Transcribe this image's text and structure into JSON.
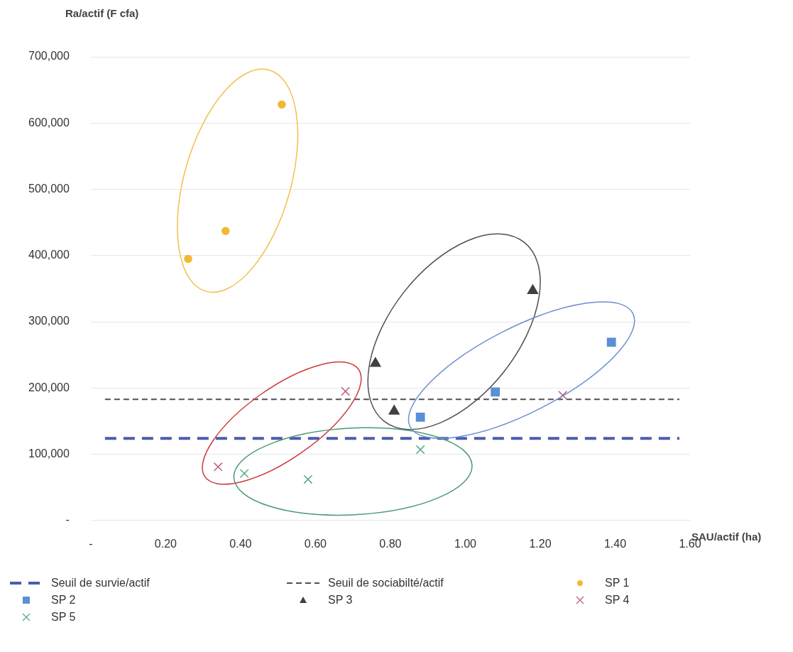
{
  "chart_data": {
    "type": "scatter",
    "xlabel": "SAU/actif (ha)",
    "ylabel": "Ra/actif (F cfa)",
    "xlim": [
      0,
      1.6
    ],
    "xticks": [
      {
        "value": 0,
        "label": "-"
      },
      {
        "value": 0.2,
        "label": "0.20"
      },
      {
        "value": 0.4,
        "label": "0.40"
      },
      {
        "value": 0.6,
        "label": "0.60"
      },
      {
        "value": 0.8,
        "label": "0.80"
      },
      {
        "value": 1,
        "label": "1.00"
      },
      {
        "value": 1.2,
        "label": "1.20"
      },
      {
        "value": 1.4,
        "label": "1.40"
      },
      {
        "value": 1.6,
        "label": "1.60"
      }
    ],
    "ylim": [
      0,
      700000
    ],
    "yticks": [
      {
        "value": 0,
        "label": "-"
      },
      {
        "value": 100000,
        "label": "100,000"
      },
      {
        "value": 200000,
        "label": "200,000"
      },
      {
        "value": 300000,
        "label": "300,000"
      },
      {
        "value": 400000,
        "label": "400,000"
      },
      {
        "value": 500000,
        "label": "500,000"
      },
      {
        "value": 600000,
        "label": "600,000"
      },
      {
        "value": 700000,
        "label": "700,000"
      }
    ],
    "grid": "y",
    "legend": "bottom",
    "ref_lines": [
      {
        "axis": "y",
        "value": 124000,
        "label": "Seuil de survie/actif",
        "color": "#4a5cb0",
        "line_style": "dashed"
      },
      {
        "axis": "y",
        "value": 183000,
        "label": "Seuil de sociabilté/actif",
        "color": "#505050",
        "line_style": "dashed"
      }
    ],
    "series": [
      {
        "name": "SP 1",
        "color": "#f2b830",
        "marker": "circle",
        "x": [
          0.26,
          0.36,
          0.51
        ],
        "values": [
          395000,
          437000,
          628000
        ]
      },
      {
        "name": "SP 2",
        "color": "#5b8fd6",
        "marker": "square",
        "x": [
          0.88,
          1.08,
          1.39
        ],
        "values": [
          156000,
          194000,
          269000
        ]
      },
      {
        "name": "SP 3",
        "color": "#404040",
        "marker": "triangle",
        "x": [
          0.76,
          0.81,
          1.18
        ],
        "values": [
          237000,
          165000,
          347000
        ]
      },
      {
        "name": "SP 4",
        "color": "#c06080",
        "marker": "cross",
        "x": [
          0.34,
          0.68,
          1.26
        ],
        "values": [
          81000,
          195000,
          189000
        ]
      },
      {
        "name": "SP 5",
        "color": "#5aa88a",
        "marker": "cross",
        "x": [
          0.41,
          0.58,
          0.88
        ],
        "values": [
          71000,
          62000,
          107000
        ]
      }
    ]
  }
}
